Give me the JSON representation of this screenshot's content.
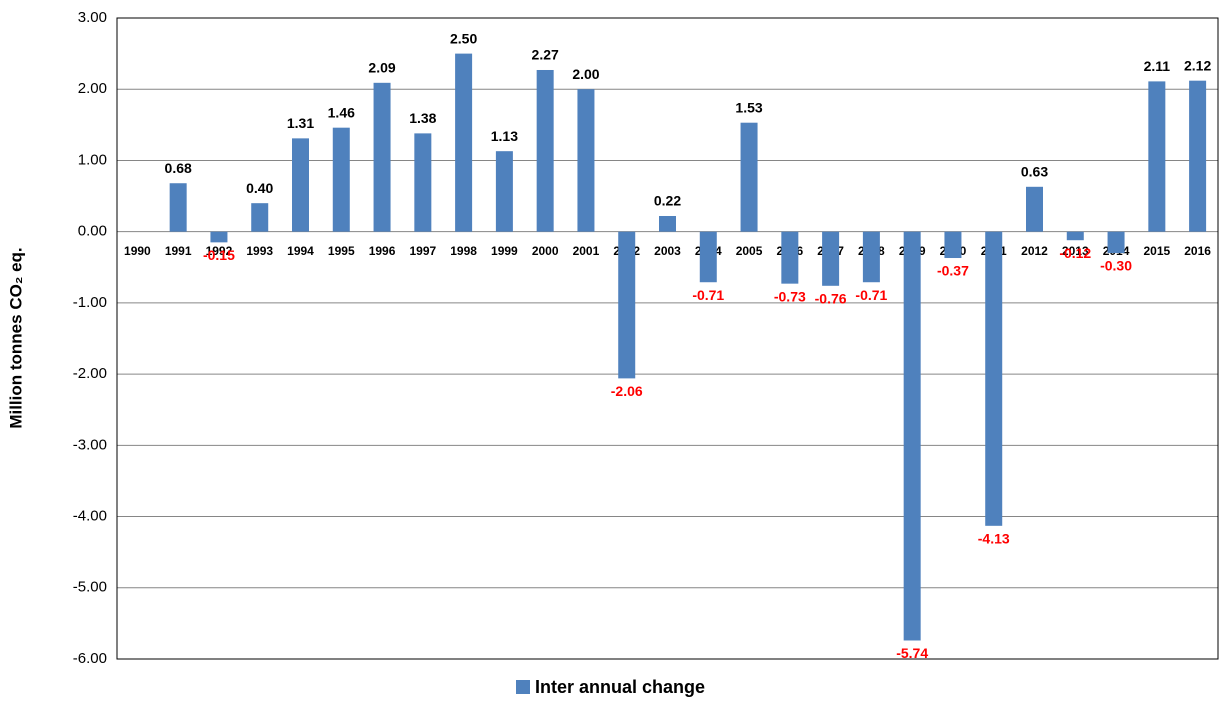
{
  "chart_data": {
    "type": "bar",
    "y_label": "Million tonnes CO₂ eq.",
    "categories": [
      "1990",
      "1991",
      "1992",
      "1993",
      "1994",
      "1995",
      "1996",
      "1997",
      "1998",
      "1999",
      "2000",
      "2001",
      "2002",
      "2003",
      "2004",
      "2005",
      "2006",
      "2007",
      "2008",
      "2009",
      "2010",
      "2011",
      "2012",
      "2013",
      "2014",
      "2015",
      "2016"
    ],
    "series": [
      {
        "name": "Inter annual change",
        "color": "#4f81bd",
        "values": [
          null,
          0.68,
          -0.15,
          0.4,
          1.31,
          1.46,
          2.09,
          1.38,
          2.5,
          1.13,
          2.27,
          2.0,
          -2.06,
          0.22,
          -0.71,
          1.53,
          -0.73,
          -0.76,
          -0.71,
          -5.74,
          -0.37,
          -4.13,
          0.63,
          -0.12,
          -0.3,
          2.11,
          2.12
        ],
        "value_labels": [
          null,
          "0.68",
          "-0.15",
          "0.40",
          "1.31",
          "1.46",
          "2.09",
          "1.38",
          "2.50",
          "1.13",
          "2.27",
          "2.00",
          "-2.06",
          "0.22",
          "-0.71",
          "1.53",
          "-0.73",
          "-0.76",
          "-0.71",
          "-5.74",
          "-0.37",
          "-4.13",
          "0.63",
          "-0.12",
          "-0.30",
          "2.11",
          "2.12"
        ]
      }
    ],
    "positive_label_color": "#000000",
    "negative_label_color": "#ff0000",
    "ylim": [
      -6,
      3
    ],
    "yticks": [
      {
        "value": -6,
        "label": "-6.00"
      },
      {
        "value": -5,
        "label": "-5.00"
      },
      {
        "value": -4,
        "label": "-4.00"
      },
      {
        "value": -3,
        "label": "-3.00"
      },
      {
        "value": -2,
        "label": "-2.00"
      },
      {
        "value": -1,
        "label": "-1.00"
      },
      {
        "value": 0,
        "label": "0.00"
      },
      {
        "value": 1,
        "label": "1.00"
      },
      {
        "value": 2,
        "label": "2.00"
      },
      {
        "value": 3,
        "label": "3.00"
      }
    ],
    "grid": true,
    "legend": "bottom"
  }
}
